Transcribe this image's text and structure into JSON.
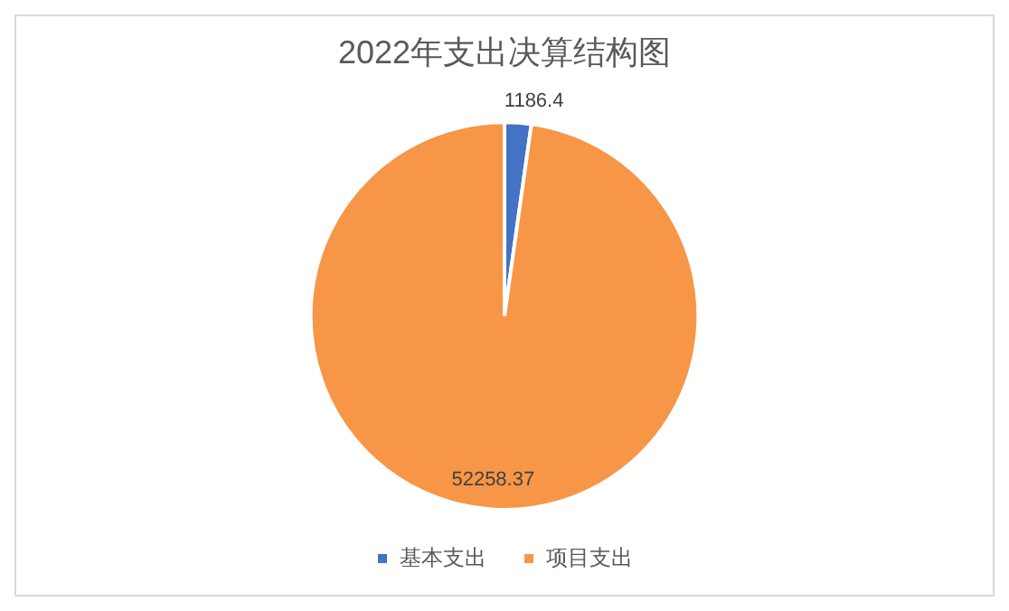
{
  "chart_data": {
    "type": "pie",
    "title": "2022年支出决算结构图",
    "categories": [
      "基本支出",
      "项目支出"
    ],
    "values": [
      1186.4,
      52258.37
    ],
    "colors": [
      "#4472c4",
      "#f79646"
    ],
    "data_labels": true,
    "legend": "bottom"
  }
}
